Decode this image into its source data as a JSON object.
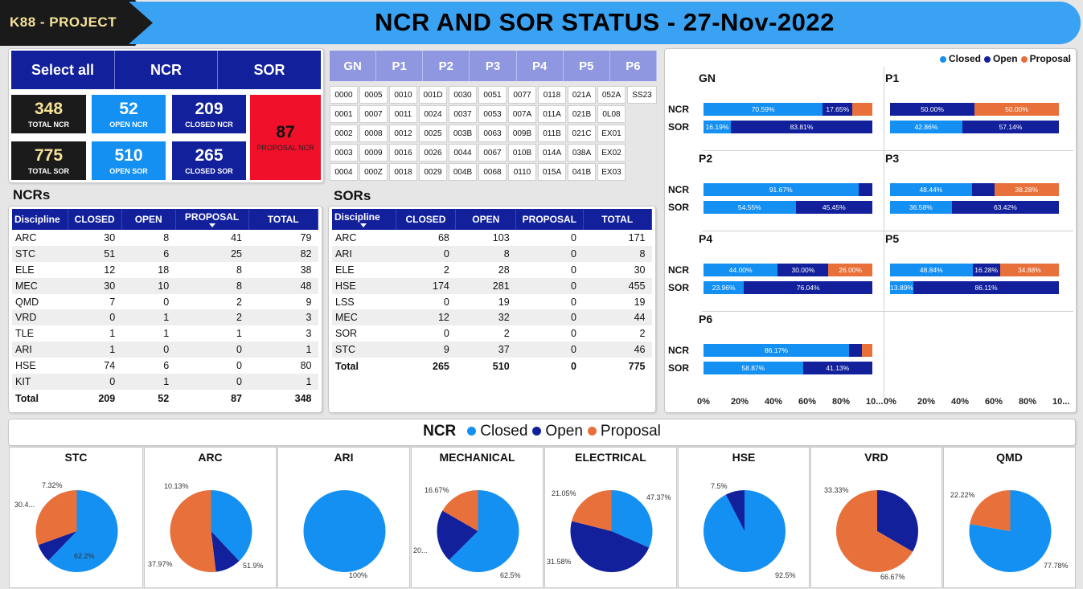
{
  "header": {
    "brand": "K88 - PROJECT",
    "title": "NCR AND SOR STATUS - 27-Nov-2022"
  },
  "nav": {
    "select_all": "Select all",
    "ncr": "NCR",
    "sor": "SOR"
  },
  "kpis": {
    "total_ncr": {
      "value": "348",
      "label": "TOTAL NCR"
    },
    "open_ncr": {
      "value": "52",
      "label": "OPEN NCR"
    },
    "closed_ncr": {
      "value": "209",
      "label": "CLOSED NCR"
    },
    "proposal_ncr": {
      "value": "87",
      "label": "PROPOSAL NCR"
    },
    "total_sor": {
      "value": "775",
      "label": "TOTAL SOR"
    },
    "open_sor": {
      "value": "510",
      "label": "OPEN SOR"
    },
    "closed_sor": {
      "value": "265",
      "label": "CLOSED SOR"
    }
  },
  "package_tabs": [
    "GN",
    "P1",
    "P2",
    "P3",
    "P4",
    "P5",
    "P6"
  ],
  "codes": [
    [
      "0000",
      "0005",
      "0010",
      "001D",
      "0030",
      "0051",
      "0077",
      "0118",
      "021A",
      "052A",
      "SS23"
    ],
    [
      "0001",
      "0007",
      "0011",
      "0024",
      "0037",
      "0053",
      "007A",
      "011A",
      "021B",
      "0L08"
    ],
    [
      "0002",
      "0008",
      "0012",
      "0025",
      "003B",
      "0063",
      "009B",
      "011B",
      "021C",
      "EX01"
    ],
    [
      "0003",
      "0009",
      "0016",
      "0026",
      "0044",
      "0067",
      "010B",
      "014A",
      "038A",
      "EX02"
    ],
    [
      "0004",
      "000Z",
      "0018",
      "0029",
      "004B",
      "0068",
      "0110",
      "015A",
      "041B",
      "EX03"
    ]
  ],
  "ncr_table": {
    "title": "NCRs",
    "headers": [
      "Discipline",
      "CLOSED",
      "OPEN",
      "PROPOSAL",
      "TOTAL"
    ],
    "rows": [
      [
        "ARC",
        "30",
        "8",
        "41",
        "79"
      ],
      [
        "STC",
        "51",
        "6",
        "25",
        "82"
      ],
      [
        "ELE",
        "12",
        "18",
        "8",
        "38"
      ],
      [
        "MEC",
        "30",
        "10",
        "8",
        "48"
      ],
      [
        "QMD",
        "7",
        "0",
        "2",
        "9"
      ],
      [
        "VRD",
        "0",
        "1",
        "2",
        "3"
      ],
      [
        "TLE",
        "1",
        "1",
        "1",
        "3"
      ],
      [
        "ARI",
        "1",
        "0",
        "0",
        "1"
      ],
      [
        "HSE",
        "74",
        "6",
        "0",
        "80"
      ],
      [
        "KIT",
        "0",
        "1",
        "0",
        "1"
      ]
    ],
    "total": [
      "Total",
      "209",
      "52",
      "87",
      "348"
    ]
  },
  "sor_table": {
    "title": "SORs",
    "headers": [
      "Discipline",
      "CLOSED",
      "OPEN",
      "PROPOSAL",
      "TOTAL"
    ],
    "rows": [
      [
        "ARC",
        "68",
        "103",
        "0",
        "171"
      ],
      [
        "ARI",
        "0",
        "8",
        "0",
        "8"
      ],
      [
        "ELE",
        "2",
        "28",
        "0",
        "30"
      ],
      [
        "HSE",
        "174",
        "281",
        "0",
        "455"
      ],
      [
        "LSS",
        "0",
        "19",
        "0",
        "19"
      ],
      [
        "MEC",
        "12",
        "32",
        "0",
        "44"
      ],
      [
        "SOR",
        "0",
        "2",
        "0",
        "2"
      ],
      [
        "STC",
        "9",
        "37",
        "0",
        "46"
      ]
    ],
    "total": [
      "Total",
      "265",
      "510",
      "0",
      "775"
    ]
  },
  "colors": {
    "closed": "#1490f2",
    "open": "#12209c",
    "proposal": "#e8703a",
    "red": "#f0102a",
    "navy": "#12209c"
  },
  "chart_data": [
    {
      "type": "bar",
      "subtype": "100% stacked horizontal, small multiples",
      "legend": [
        "Closed",
        "Open",
        "Proposal"
      ],
      "legend_position": "top-right",
      "x_ticks": [
        "0%",
        "20%",
        "40%",
        "60%",
        "80%",
        "10..."
      ],
      "panels": [
        {
          "name": "GN",
          "rows": [
            {
              "label": "NCR",
              "values": [
                70.59,
                17.65,
                11.76
              ],
              "labels": [
                "70.59%",
                "17.65%",
                ""
              ]
            },
            {
              "label": "SOR",
              "values": [
                16.19,
                83.81,
                0
              ],
              "labels": [
                "16.19%",
                "83.81%",
                ""
              ]
            }
          ]
        },
        {
          "name": "P1",
          "rows": [
            {
              "label": "NCR",
              "values": [
                0,
                50,
                50
              ],
              "labels": [
                "",
                "50.00%",
                "50.00%"
              ]
            },
            {
              "label": "SOR",
              "values": [
                42.86,
                57.14,
                0
              ],
              "labels": [
                "42.86%",
                "57.14%",
                ""
              ]
            }
          ]
        },
        {
          "name": "P2",
          "rows": [
            {
              "label": "NCR",
              "values": [
                91.67,
                8.33,
                0
              ],
              "labels": [
                "91.67%",
                "",
                ""
              ]
            },
            {
              "label": "SOR",
              "values": [
                54.55,
                45.45,
                0
              ],
              "labels": [
                "54.55%",
                "45.45%",
                ""
              ]
            }
          ]
        },
        {
          "name": "P3",
          "rows": [
            {
              "label": "NCR",
              "values": [
                48.44,
                13.28,
                38.28
              ],
              "labels": [
                "48.44%",
                "",
                "38.28%"
              ]
            },
            {
              "label": "SOR",
              "values": [
                36.58,
                63.42,
                0
              ],
              "labels": [
                "36.58%",
                "63.42%",
                ""
              ]
            }
          ]
        },
        {
          "name": "P4",
          "rows": [
            {
              "label": "NCR",
              "values": [
                44,
                30,
                26
              ],
              "labels": [
                "44.00%",
                "30.00%",
                "26.00%"
              ]
            },
            {
              "label": "SOR",
              "values": [
                23.96,
                76.04,
                0
              ],
              "labels": [
                "23.96%",
                "76.04%",
                ""
              ]
            }
          ]
        },
        {
          "name": "P5",
          "rows": [
            {
              "label": "NCR",
              "values": [
                48.84,
                16.28,
                34.88
              ],
              "labels": [
                "48.84%",
                "16.28%",
                "34.88%"
              ]
            },
            {
              "label": "SOR",
              "values": [
                13.89,
                86.11,
                0
              ],
              "labels": [
                "13.89%",
                "86.11%",
                ""
              ]
            }
          ]
        },
        {
          "name": "P6",
          "rows": [
            {
              "label": "NCR",
              "values": [
                86.17,
                7.45,
                6.38
              ],
              "labels": [
                "86.17%",
                "",
                ""
              ]
            },
            {
              "label": "SOR",
              "values": [
                58.87,
                41.13,
                0
              ],
              "labels": [
                "58.87%",
                "41.13%",
                ""
              ]
            }
          ]
        }
      ]
    },
    {
      "type": "pie",
      "title": "NCR",
      "legend": [
        "Closed",
        "Open",
        "Proposal"
      ],
      "legend_position": "top",
      "pies": [
        {
          "name": "STC",
          "values": [
            62.2,
            7.32,
            30.48
          ],
          "labels": [
            "62.2%",
            "7.32%",
            "30.4..."
          ]
        },
        {
          "name": "ARC",
          "values": [
            37.97,
            10.13,
            51.9
          ],
          "labels": [
            "37.97%",
            "10.13%",
            "51.9%"
          ]
        },
        {
          "name": "ARI",
          "values": [
            100,
            0,
            0
          ],
          "labels": [
            "100%",
            "",
            ""
          ]
        },
        {
          "name": "MECHANICAL",
          "values": [
            62.5,
            20.83,
            16.67
          ],
          "labels": [
            "62.5%",
            "20...",
            "16.67%"
          ]
        },
        {
          "name": "ELECTRICAL",
          "values": [
            31.58,
            47.37,
            21.05
          ],
          "labels": [
            "31.58%",
            "47.37%",
            "21.05%"
          ]
        },
        {
          "name": "HSE",
          "values": [
            92.5,
            7.5,
            0
          ],
          "labels": [
            "92.5%",
            "7.5%",
            ""
          ]
        },
        {
          "name": "VRD",
          "values": [
            0,
            33.33,
            66.67
          ],
          "labels": [
            "",
            "33.33%",
            "66.67%"
          ]
        },
        {
          "name": "QMD",
          "values": [
            77.78,
            0,
            22.22
          ],
          "labels": [
            "77.78%",
            "",
            "22.22%"
          ]
        }
      ]
    }
  ]
}
